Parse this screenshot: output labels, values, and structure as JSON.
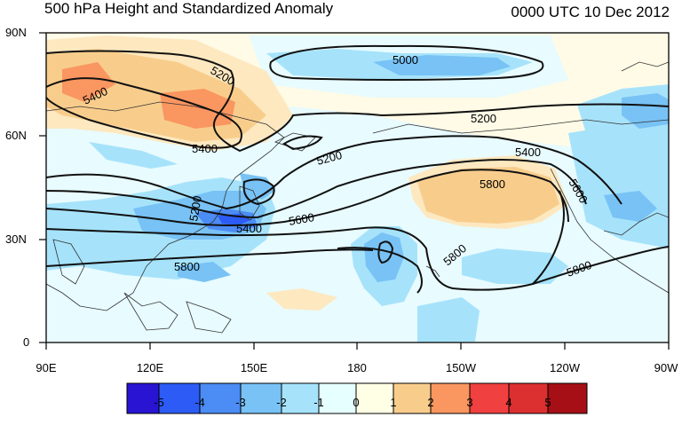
{
  "header": {
    "title": "500 hPa Height and Standardized Anomaly",
    "valid_time": "0000 UTC 10 Dec 2012"
  },
  "axes": {
    "lat_labels": [
      "90N",
      "60N",
      "30N",
      "0"
    ],
    "lon_labels": [
      "90E",
      "120E",
      "150E",
      "180",
      "150W",
      "120W",
      "90W"
    ]
  },
  "contour_labels": [
    "5000",
    "5200",
    "5200",
    "5200",
    "5400",
    "5400",
    "5400",
    "5400",
    "5200",
    "5600",
    "5600",
    "5800",
    "5800",
    "5800",
    "5800"
  ],
  "colorbar": {
    "labels": [
      "-5",
      "-4",
      "-3",
      "-2",
      "-1",
      "0",
      "1",
      "2",
      "3",
      "4",
      "5"
    ],
    "colors": [
      "#2814d2",
      "#2c5cf5",
      "#4b8cf5",
      "#78c2f5",
      "#a6e3fb",
      "#e6ffff",
      "#ffffe6",
      "#f8cd8c",
      "#fa9660",
      "#f04040",
      "#dc3030",
      "#a50f15"
    ]
  },
  "colors": {
    "ocean_neutral": "#e8fbff",
    "land_neutral": "#fffbe6",
    "contour": "#111111",
    "coast": "#333333"
  }
}
